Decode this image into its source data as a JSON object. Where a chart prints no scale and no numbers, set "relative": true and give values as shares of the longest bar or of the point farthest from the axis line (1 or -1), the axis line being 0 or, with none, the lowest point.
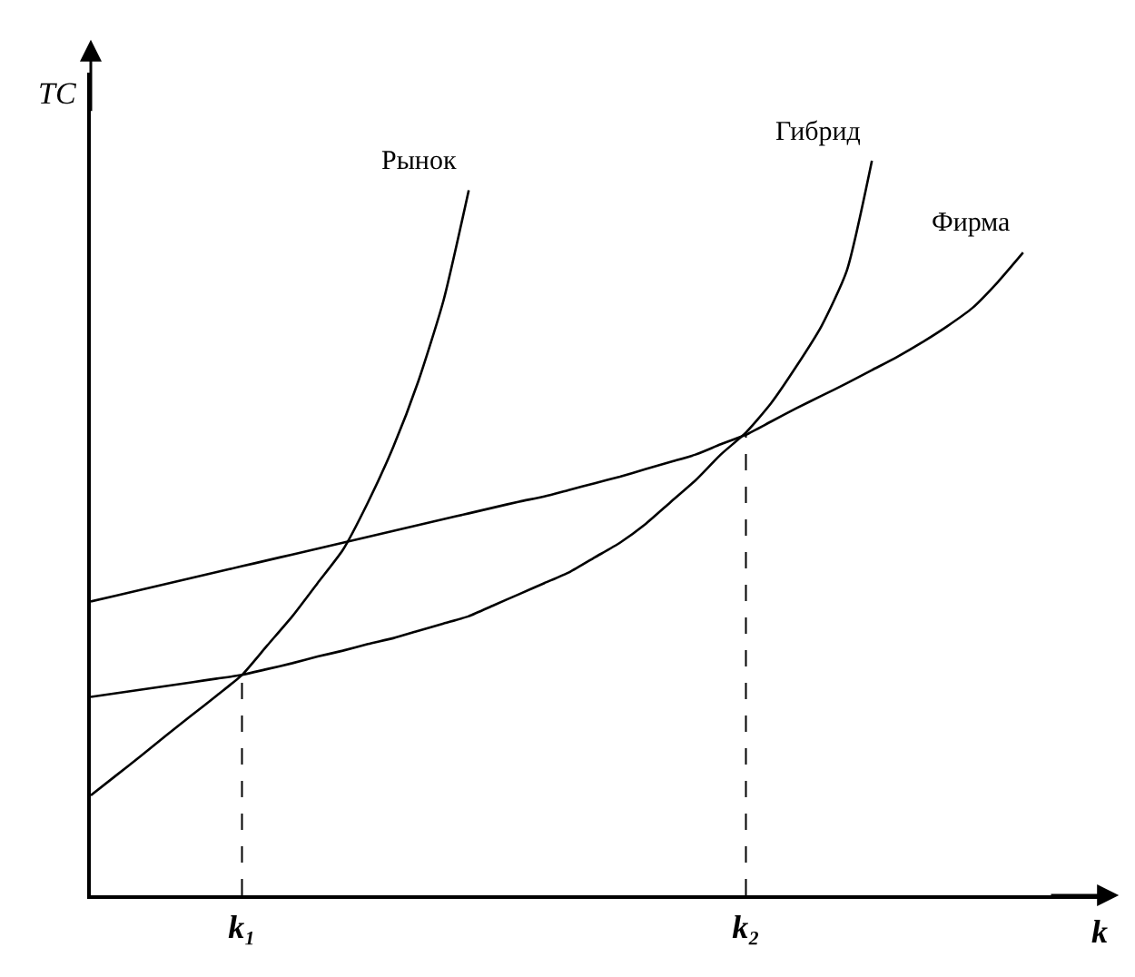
{
  "chart_data": {
    "type": "line",
    "relative": true,
    "ylabel": "TC",
    "xlabel": "k",
    "legend": false,
    "grid": false,
    "marker": "none",
    "line_style": "solid",
    "categories": [
      null,
      null,
      null,
      null,
      null,
      null,
      "k₁",
      null,
      null,
      null,
      null,
      null,
      null,
      null,
      null,
      null,
      null,
      null,
      null,
      null,
      null,
      null,
      null,
      null,
      null,
      null,
      "k₂",
      null,
      null,
      null,
      null,
      null,
      null,
      null,
      null,
      null,
      null,
      null,
      null,
      null,
      null
    ],
    "series": [
      {
        "name": "Рынок",
        "color": "#000000",
        "values": [
          0.136,
          0.163,
          0.19,
          0.218,
          0.245,
          0.272,
          0.3,
          0.34,
          0.38,
          0.425,
          0.47,
          0.535,
          0.61,
          0.7,
          0.81,
          0.96,
          null,
          null,
          null,
          null,
          null,
          null,
          null,
          null,
          null,
          null,
          null,
          null,
          null,
          null,
          null,
          null,
          null,
          null,
          null,
          null,
          null,
          null,
          null,
          null,
          null
        ]
      },
      {
        "name": "Гибрид",
        "color": "#000000",
        "values": [
          0.27,
          0.275,
          0.28,
          0.285,
          0.29,
          0.295,
          0.3,
          0.308,
          0.316,
          0.325,
          0.333,
          0.342,
          0.35,
          0.36,
          0.37,
          0.38,
          0.395,
          0.41,
          0.425,
          0.44,
          0.46,
          0.48,
          0.505,
          0.535,
          0.565,
          0.6,
          0.63,
          0.67,
          0.72,
          0.775,
          0.85,
          1.0,
          null,
          null,
          null,
          null,
          null,
          null,
          null,
          null,
          null
        ]
      },
      {
        "name": "Фирма",
        "color": "#000000",
        "values": [
          0.4,
          0.408,
          0.416,
          0.424,
          0.432,
          0.44,
          0.448,
          0.456,
          0.464,
          0.472,
          0.48,
          0.488,
          0.496,
          0.504,
          0.512,
          0.52,
          0.528,
          0.536,
          0.543,
          0.552,
          0.561,
          0.57,
          0.58,
          0.59,
          0.6,
          0.614,
          0.627,
          0.645,
          0.663,
          0.68,
          0.697,
          0.715,
          0.733,
          0.753,
          0.775,
          0.8,
          0.835,
          0.875,
          null,
          null,
          null
        ]
      }
    ],
    "ref_lines": [
      {
        "axis": "x",
        "value": "k₁",
        "color": "#000000",
        "line_style": "dashed"
      },
      {
        "axis": "x",
        "value": "k₂",
        "color": "#000000",
        "line_style": "dashed"
      }
    ]
  }
}
